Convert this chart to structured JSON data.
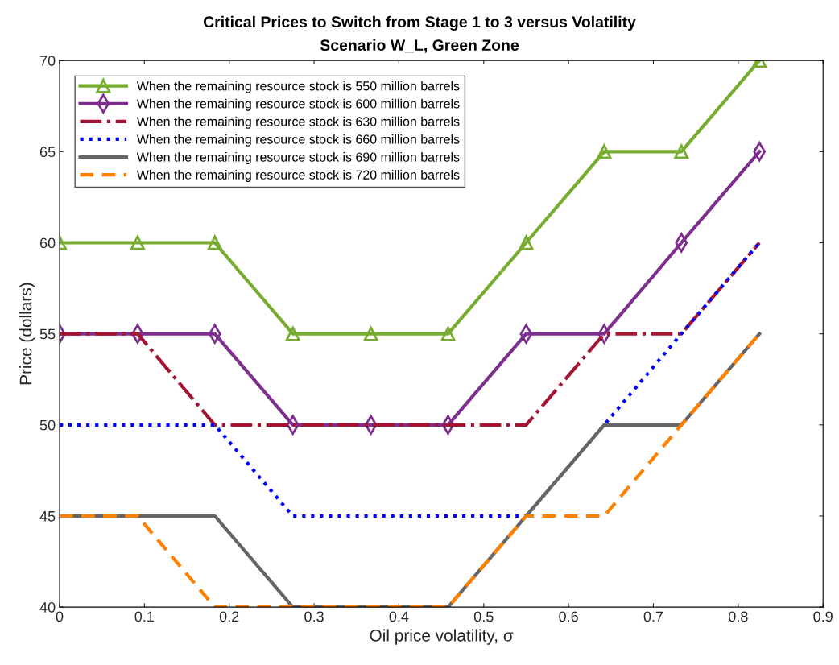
{
  "chart_data": {
    "type": "line",
    "title": "Critical Prices to Switch from Stage 1 to 3 versus Volatility",
    "subtitle": "Scenario W_L, Green Zone",
    "xlabel": "Oil price volatility, σ",
    "ylabel": "Price (dollars)",
    "x": [
      0,
      0.092,
      0.183,
      0.275,
      0.367,
      0.458,
      0.55,
      0.642,
      0.733,
      0.825
    ],
    "series": [
      {
        "name": "When the remaining resource stock is 550 million barrels",
        "color": "#77ac30",
        "marker": "triangle",
        "line_style": "solid",
        "values": [
          60,
          60,
          60,
          55,
          55,
          55,
          60,
          65,
          65,
          70
        ]
      },
      {
        "name": "When the remaining resource stock is 600 million barrels",
        "color": "#7e2f8e",
        "marker": "diamond",
        "line_style": "solid",
        "values": [
          55,
          55,
          55,
          50,
          50,
          50,
          55,
          55,
          60,
          65
        ]
      },
      {
        "name": "When the remaining resource stock is 630 million barrels",
        "color": "#a2142f",
        "marker": "none",
        "line_style": "dashdot",
        "values": [
          55,
          55,
          50,
          50,
          50,
          50,
          50,
          55,
          55,
          60
        ]
      },
      {
        "name": "When the remaining resource stock is 660 million barrels",
        "color": "#0000ff",
        "marker": "none",
        "line_style": "dotted",
        "values": [
          50,
          50,
          50,
          45,
          45,
          45,
          45,
          50,
          55,
          60
        ]
      },
      {
        "name": "When the remaining resource stock is 690 million barrels",
        "color": "#656565",
        "marker": "none",
        "line_style": "solid",
        "values": [
          45,
          45,
          45,
          40,
          40,
          40,
          45,
          50,
          50,
          55
        ]
      },
      {
        "name": "When the remaining resource stock is 720 million barrels",
        "color": "#ff8000",
        "marker": "none",
        "line_style": "dashed",
        "values": [
          45,
          45,
          40,
          40,
          40,
          40,
          45,
          45,
          50,
          55
        ]
      }
    ],
    "xlim": [
      0,
      0.9
    ],
    "xticks": [
      0,
      0.1,
      0.2,
      0.3,
      0.4,
      0.5,
      0.6,
      0.7,
      0.8,
      0.9
    ],
    "ylim": [
      40,
      70
    ],
    "yticks": [
      40,
      45,
      50,
      55,
      60,
      65,
      70
    ],
    "grid": false,
    "legend": "top left"
  }
}
